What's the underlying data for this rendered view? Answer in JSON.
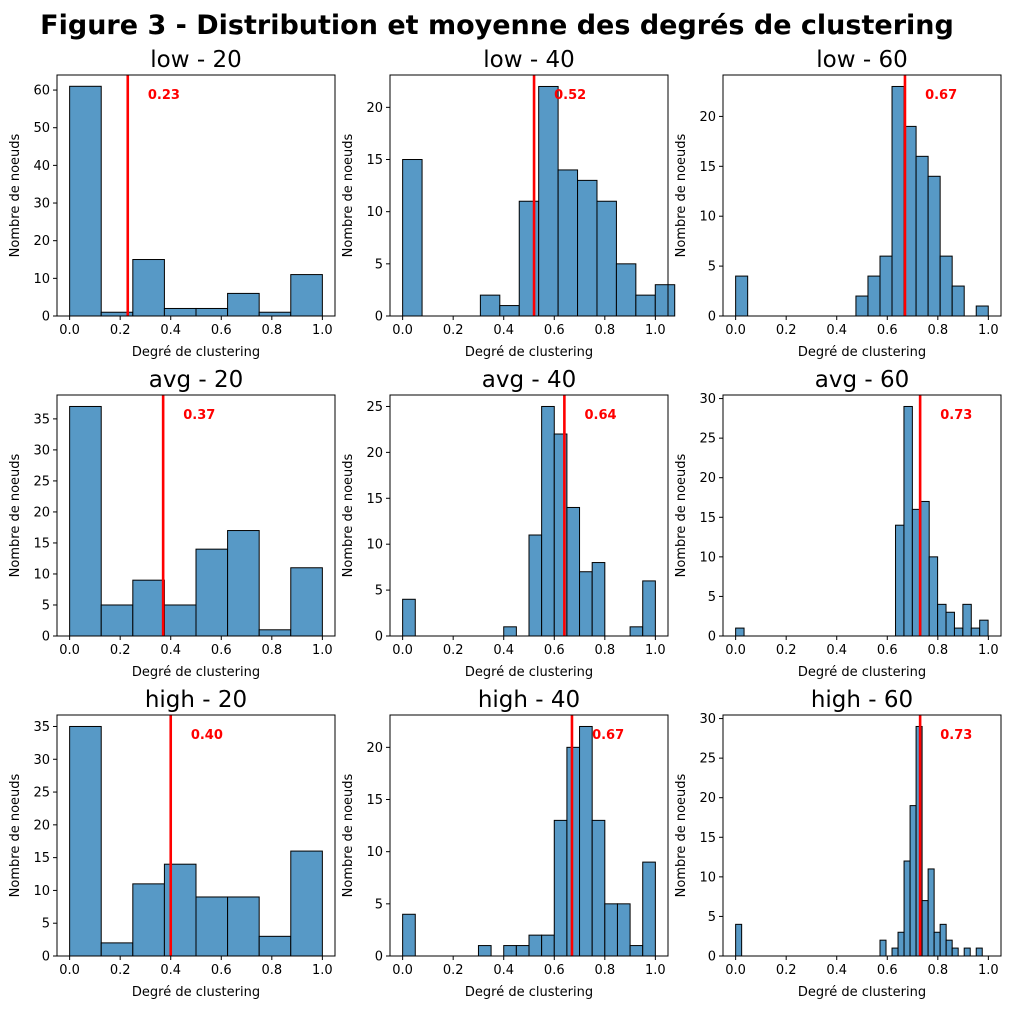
{
  "suptitle": "Figure 3 - Distribution et moyenne des degrés de clustering",
  "colors": {
    "bar_fill": "#5799c6",
    "bar_edge": "#000000",
    "mean_line": "#ff0000",
    "mean_text": "#ff0000"
  },
  "chart_data": [
    {
      "type": "bar",
      "title": "low - 20",
      "xlabel": "Degré de clustering",
      "ylabel": "Nombre de noeuds",
      "xlim": [
        -0.05,
        1.05
      ],
      "ylim": [
        0,
        64
      ],
      "xticks": [
        0.0,
        0.2,
        0.4,
        0.6,
        0.8,
        1.0
      ],
      "xtick_labels": [
        "0.0",
        "0.2",
        "0.4",
        "0.6",
        "0.8",
        "1.0"
      ],
      "yticks": [
        0,
        10,
        20,
        30,
        40,
        50,
        60
      ],
      "bin_width": 0.125,
      "counts": [
        61,
        1,
        15,
        2,
        2,
        6,
        1,
        11
      ],
      "mean": 0.23,
      "mean_label": "0.23"
    },
    {
      "type": "bar",
      "title": "low - 40",
      "xlabel": "Degré de clustering",
      "ylabel": "Nombre de noeuds",
      "xlim": [
        -0.05,
        1.05
      ],
      "ylim": [
        0,
        23.1
      ],
      "xticks": [
        0.0,
        0.2,
        0.4,
        0.6,
        0.8,
        1.0
      ],
      "xtick_labels": [
        "0.0",
        "0.2",
        "0.4",
        "0.6",
        "0.8",
        "1.0"
      ],
      "yticks": [
        0,
        5,
        10,
        15,
        20
      ],
      "bin_width": 0.0769,
      "counts": [
        15,
        0,
        0,
        0,
        2,
        1,
        11,
        22,
        14,
        13,
        11,
        5,
        2,
        3
      ],
      "mean": 0.52,
      "mean_label": "0.52"
    },
    {
      "type": "bar",
      "title": "low - 60",
      "xlabel": "Degré de clustering",
      "ylabel": "Nombre de noeuds",
      "xlim": [
        -0.05,
        1.05
      ],
      "ylim": [
        0,
        24.15
      ],
      "xticks": [
        0.0,
        0.2,
        0.4,
        0.6,
        0.8,
        1.0
      ],
      "xtick_labels": [
        "0.0",
        "0.2",
        "0.4",
        "0.6",
        "0.8",
        "1.0"
      ],
      "yticks": [
        0,
        5,
        10,
        15,
        20
      ],
      "bin_width": 0.0476,
      "counts": [
        4,
        0,
        0,
        0,
        0,
        0,
        0,
        0,
        0,
        0,
        2,
        4,
        6,
        23,
        19,
        16,
        14,
        6,
        3,
        0,
        1
      ],
      "mean": 0.67,
      "mean_label": "0.67"
    },
    {
      "type": "bar",
      "title": "avg - 20",
      "xlabel": "Degré de clustering",
      "ylabel": "Nombre de noeuds",
      "xlim": [
        -0.05,
        1.05
      ],
      "ylim": [
        0,
        38.85
      ],
      "xticks": [
        0.0,
        0.2,
        0.4,
        0.6,
        0.8,
        1.0
      ],
      "xtick_labels": [
        "0.0",
        "0.2",
        "0.4",
        "0.6",
        "0.8",
        "1.0"
      ],
      "yticks": [
        0,
        5,
        10,
        15,
        20,
        25,
        30,
        35
      ],
      "bin_width": 0.125,
      "counts": [
        37,
        5,
        9,
        5,
        14,
        17,
        1,
        11
      ],
      "mean": 0.37,
      "mean_label": "0.37"
    },
    {
      "type": "bar",
      "title": "avg - 40",
      "xlabel": "Degré de clustering",
      "ylabel": "Nombre de noeuds",
      "xlim": [
        -0.05,
        1.05
      ],
      "ylim": [
        0,
        26.25
      ],
      "xticks": [
        0.0,
        0.2,
        0.4,
        0.6,
        0.8,
        1.0
      ],
      "xtick_labels": [
        "0.0",
        "0.2",
        "0.4",
        "0.6",
        "0.8",
        "1.0"
      ],
      "yticks": [
        0,
        5,
        10,
        15,
        20,
        25
      ],
      "bin_width": 0.05,
      "counts": [
        4,
        0,
        0,
        0,
        0,
        0,
        0,
        0,
        1,
        0,
        11,
        25,
        22,
        14,
        7,
        8,
        0,
        0,
        1,
        6
      ],
      "mean": 0.64,
      "mean_label": "0.64"
    },
    {
      "type": "bar",
      "title": "avg - 60",
      "xlabel": "Degré de clustering",
      "ylabel": "Nombre de noeuds",
      "xlim": [
        -0.05,
        1.05
      ],
      "ylim": [
        0,
        30.45
      ],
      "xticks": [
        0.0,
        0.2,
        0.4,
        0.6,
        0.8,
        1.0
      ],
      "xtick_labels": [
        "0.0",
        "0.2",
        "0.4",
        "0.6",
        "0.8",
        "1.0"
      ],
      "yticks": [
        0,
        5,
        10,
        15,
        20,
        25,
        30
      ],
      "bin_width": 0.0333,
      "counts": [
        1,
        0,
        0,
        0,
        0,
        0,
        0,
        0,
        0,
        0,
        0,
        0,
        0,
        0,
        0,
        0,
        0,
        0,
        0,
        14,
        29,
        16,
        17,
        10,
        4,
        3,
        1,
        4,
        1,
        2
      ],
      "mean": 0.73,
      "mean_label": "0.73"
    },
    {
      "type": "bar",
      "title": "high - 20",
      "xlabel": "Degré de clustering",
      "ylabel": "Nombre de noeuds",
      "xlim": [
        -0.05,
        1.05
      ],
      "ylim": [
        0,
        36.75
      ],
      "xticks": [
        0.0,
        0.2,
        0.4,
        0.6,
        0.8,
        1.0
      ],
      "xtick_labels": [
        "0.0",
        "0.2",
        "0.4",
        "0.6",
        "0.8",
        "1.0"
      ],
      "yticks": [
        0,
        5,
        10,
        15,
        20,
        25,
        30,
        35
      ],
      "bin_width": 0.125,
      "counts": [
        35,
        2,
        11,
        14,
        9,
        9,
        3,
        16
      ],
      "mean": 0.4,
      "mean_label": "0.40"
    },
    {
      "type": "bar",
      "title": "high - 40",
      "xlabel": "Degré de clustering",
      "ylabel": "Nombre de noeuds",
      "xlim": [
        -0.05,
        1.05
      ],
      "ylim": [
        0,
        23.1
      ],
      "xticks": [
        0.0,
        0.2,
        0.4,
        0.6,
        0.8,
        1.0
      ],
      "xtick_labels": [
        "0.0",
        "0.2",
        "0.4",
        "0.6",
        "0.8",
        "1.0"
      ],
      "yticks": [
        0,
        5,
        10,
        15,
        20
      ],
      "bin_width": 0.05,
      "counts": [
        4,
        0,
        0,
        0,
        0,
        0,
        1,
        0,
        1,
        1,
        2,
        2,
        13,
        20,
        22,
        13,
        5,
        5,
        1,
        9
      ],
      "mean": 0.67,
      "mean_label": "0.67"
    },
    {
      "type": "bar",
      "title": "high - 60",
      "xlabel": "Degré de clustering",
      "ylabel": "Nombre de noeuds",
      "xlim": [
        -0.05,
        1.05
      ],
      "ylim": [
        0,
        30.45
      ],
      "xticks": [
        0.0,
        0.2,
        0.4,
        0.6,
        0.8,
        1.0
      ],
      "xtick_labels": [
        "0.0",
        "0.2",
        "0.4",
        "0.6",
        "0.8",
        "1.0"
      ],
      "yticks": [
        0,
        5,
        10,
        15,
        20,
        25,
        30
      ],
      "bin_width": 0.0238,
      "counts": [
        4,
        0,
        0,
        0,
        0,
        0,
        0,
        0,
        0,
        0,
        0,
        0,
        0,
        0,
        0,
        0,
        0,
        0,
        0,
        0,
        0,
        0,
        0,
        0,
        2,
        0,
        1,
        3,
        12,
        19,
        29,
        7,
        11,
        3,
        4,
        2,
        1,
        0,
        1,
        0,
        1
      ],
      "mean": 0.73,
      "mean_label": "0.73"
    }
  ]
}
